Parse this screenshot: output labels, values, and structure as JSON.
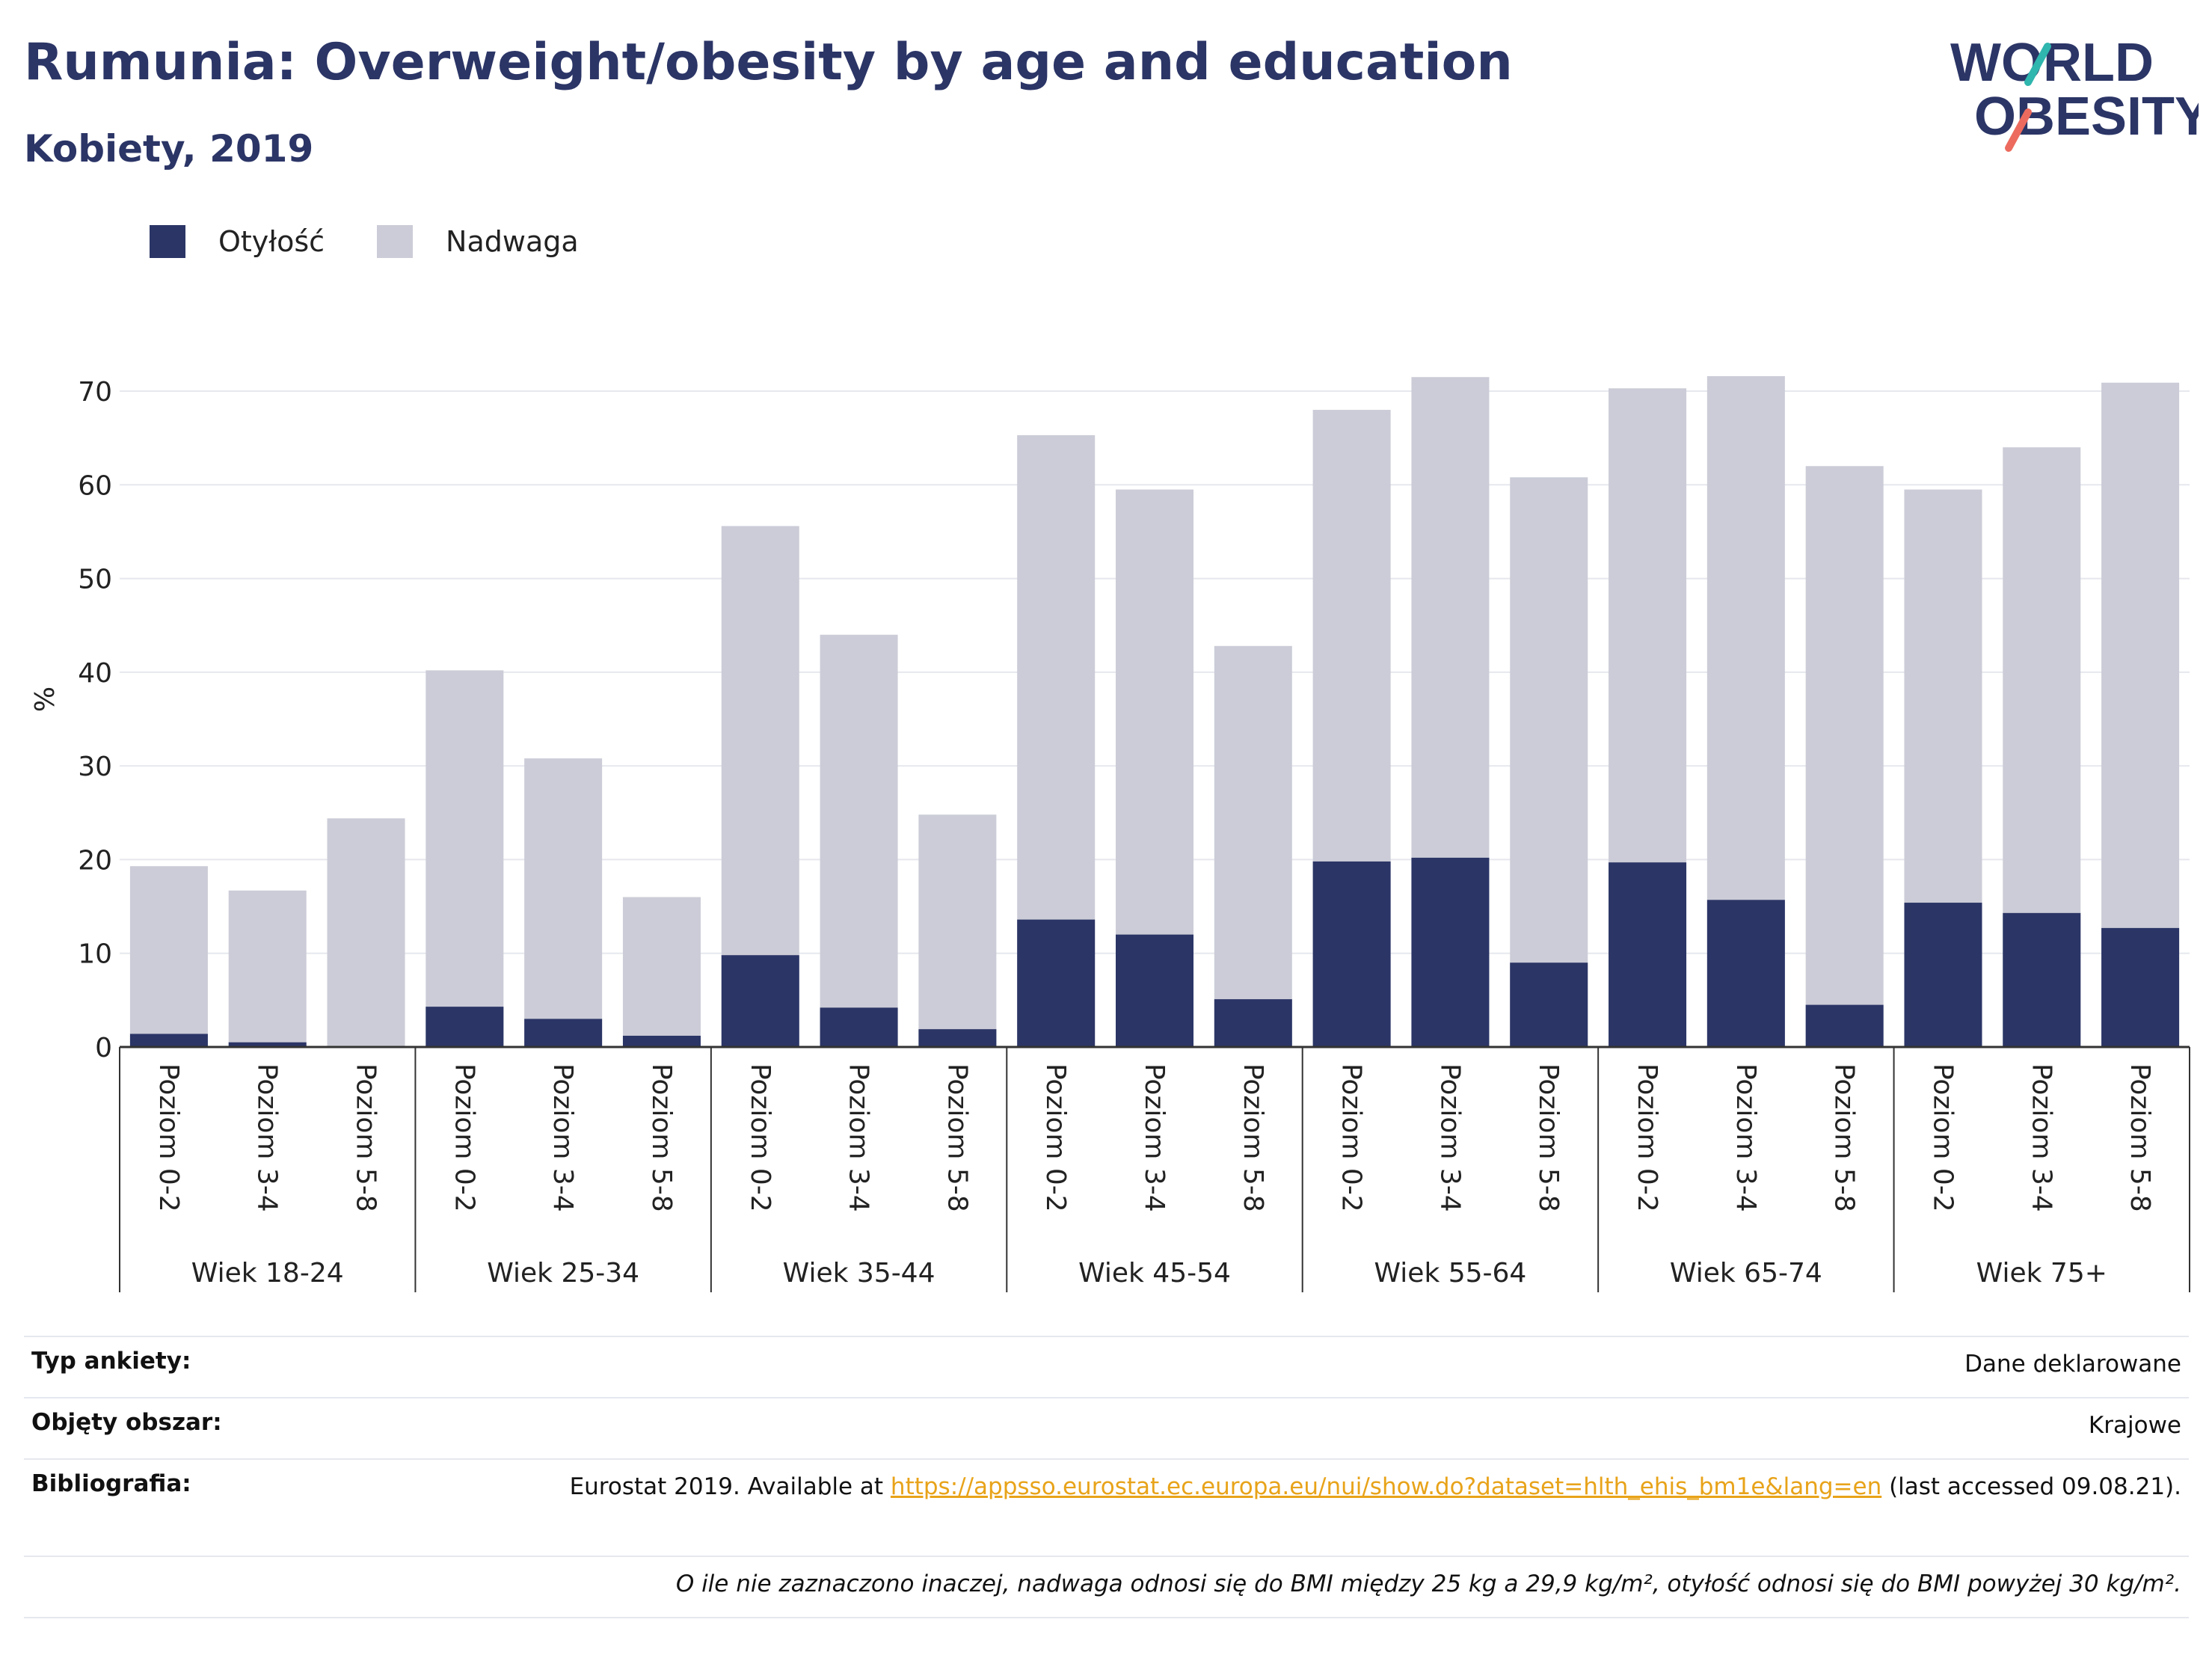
{
  "header": {
    "title": "Rumunia: Overweight/obesity by age and education",
    "subtitle": "Kobiety, 2019"
  },
  "logo": {
    "line1": "WORLD",
    "line2": "OBESITY"
  },
  "colors": {
    "obesity": "#2b3566",
    "overweight": "#cbccd7",
    "title": "#2b3566",
    "link": "#e8a319"
  },
  "legend": [
    {
      "label": "Otyłość",
      "color": "#2b3566"
    },
    {
      "label": "Nadwaga",
      "color": "#cbccd7"
    }
  ],
  "chart_data": {
    "type": "bar",
    "stacked": true,
    "ylabel": "%",
    "ylim": [
      0,
      72
    ],
    "yticks": [
      0,
      10,
      20,
      30,
      40,
      50,
      60,
      70
    ],
    "grid": true,
    "legend_position": "top-left",
    "groups": [
      {
        "label": "Wiek 18-24",
        "categories": [
          "Poziom 0-2",
          "Poziom 3-4",
          "Poziom 5-8"
        ],
        "obesity": [
          1.4,
          0.5,
          0
        ],
        "total": [
          19.3,
          16.7,
          24.4
        ]
      },
      {
        "label": "Wiek 25-34",
        "categories": [
          "Poziom 0-2",
          "Poziom 3-4",
          "Poziom 5-8"
        ],
        "obesity": [
          4.3,
          3.0,
          1.2
        ],
        "total": [
          40.2,
          30.8,
          16.0
        ]
      },
      {
        "label": "Wiek 35-44",
        "categories": [
          "Poziom 0-2",
          "Poziom 3-4",
          "Poziom 5-8"
        ],
        "obesity": [
          9.8,
          4.2,
          1.9
        ],
        "total": [
          55.6,
          44.0,
          24.8
        ]
      },
      {
        "label": "Wiek 45-54",
        "categories": [
          "Poziom 0-2",
          "Poziom 3-4",
          "Poziom 5-8"
        ],
        "obesity": [
          13.6,
          12.0,
          5.1
        ],
        "total": [
          65.3,
          59.5,
          42.8
        ]
      },
      {
        "label": "Wiek 55-64",
        "categories": [
          "Poziom 0-2",
          "Poziom 3-4",
          "Poziom 5-8"
        ],
        "obesity": [
          19.8,
          20.2,
          9.0
        ],
        "total": [
          68.0,
          71.5,
          60.8
        ]
      },
      {
        "label": "Wiek 65-74",
        "categories": [
          "Poziom 0-2",
          "Poziom 3-4",
          "Poziom 5-8"
        ],
        "obesity": [
          19.7,
          15.7,
          4.5
        ],
        "total": [
          70.3,
          71.6,
          62.0
        ]
      },
      {
        "label": "Wiek 75+",
        "categories": [
          "Poziom 0-2",
          "Poziom 3-4",
          "Poziom 5-8"
        ],
        "obesity": [
          15.4,
          14.3,
          12.7
        ],
        "total": [
          59.5,
          64.0,
          70.9
        ]
      }
    ]
  },
  "meta": [
    {
      "key": "Typ ankiety:",
      "value": "Dane deklarowane"
    },
    {
      "key": "Objęty obszar:",
      "value": "Krajowe"
    },
    {
      "key": "Bibliografia:",
      "prefix": "Eurostat 2019. Available at ",
      "link": "https://appsso.eurostat.ec.europa.eu/nui/show.do?dataset=hlth_ehis_bm1e&lang=en",
      "suffix": " (last accessed 09.08.21)."
    }
  ],
  "footnote": "O ile nie zaznaczono inaczej, nadwaga odnosi się do BMI między 25 kg a 29,9 kg/m², otyłość odnosi się do BMI powyżej 30 kg/m²."
}
